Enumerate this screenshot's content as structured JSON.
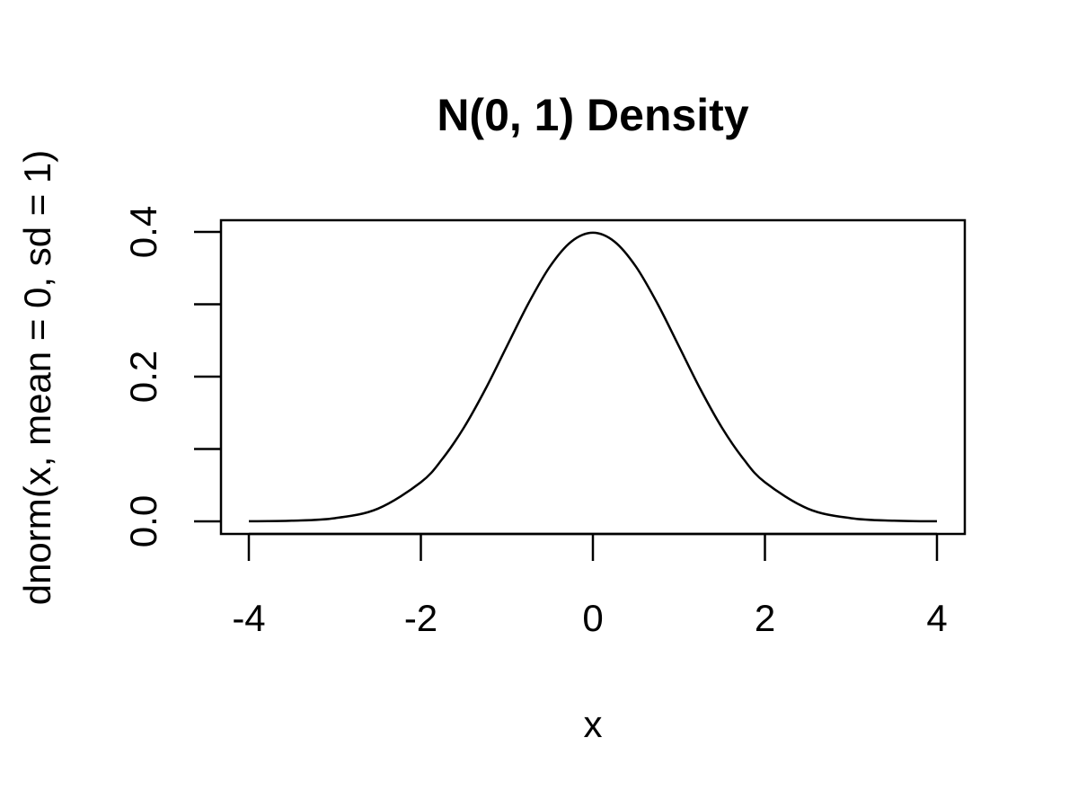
{
  "chart_data": {
    "type": "line",
    "title": "N(0, 1) Density",
    "xlabel": "x",
    "ylabel": "dnorm(x, mean = 0, sd = 1)",
    "xlim": [
      -4,
      4
    ],
    "ylim": [
      0,
      0.4
    ],
    "x_ticks": [
      -4,
      -2,
      0,
      2,
      4
    ],
    "x_tick_labels": [
      "-4",
      "-2",
      "0",
      "2",
      "4"
    ],
    "y_ticks": [
      0,
      0.1,
      0.2,
      0.3,
      0.4
    ],
    "y_tick_labels": [
      "0.0",
      "",
      "0.2",
      "",
      "0.4"
    ],
    "grid": false,
    "series": [
      {
        "x": [
          -4,
          -3.5,
          -3,
          -2.5,
          -2,
          -1.75,
          -1.5,
          -1.25,
          -1,
          -0.75,
          -0.5,
          -0.25,
          0,
          0.25,
          0.5,
          0.75,
          1,
          1.25,
          1.5,
          1.75,
          2,
          2.5,
          3,
          3.5,
          4
        ],
        "y": [
          0.0001,
          0.0009,
          0.0044,
          0.0175,
          0.054,
          0.0863,
          0.1295,
          0.1826,
          0.242,
          0.3011,
          0.3521,
          0.3867,
          0.3989,
          0.3867,
          0.3521,
          0.3011,
          0.242,
          0.1826,
          0.1295,
          0.0863,
          0.054,
          0.0175,
          0.0044,
          0.0009,
          0.0001
        ]
      }
    ]
  }
}
